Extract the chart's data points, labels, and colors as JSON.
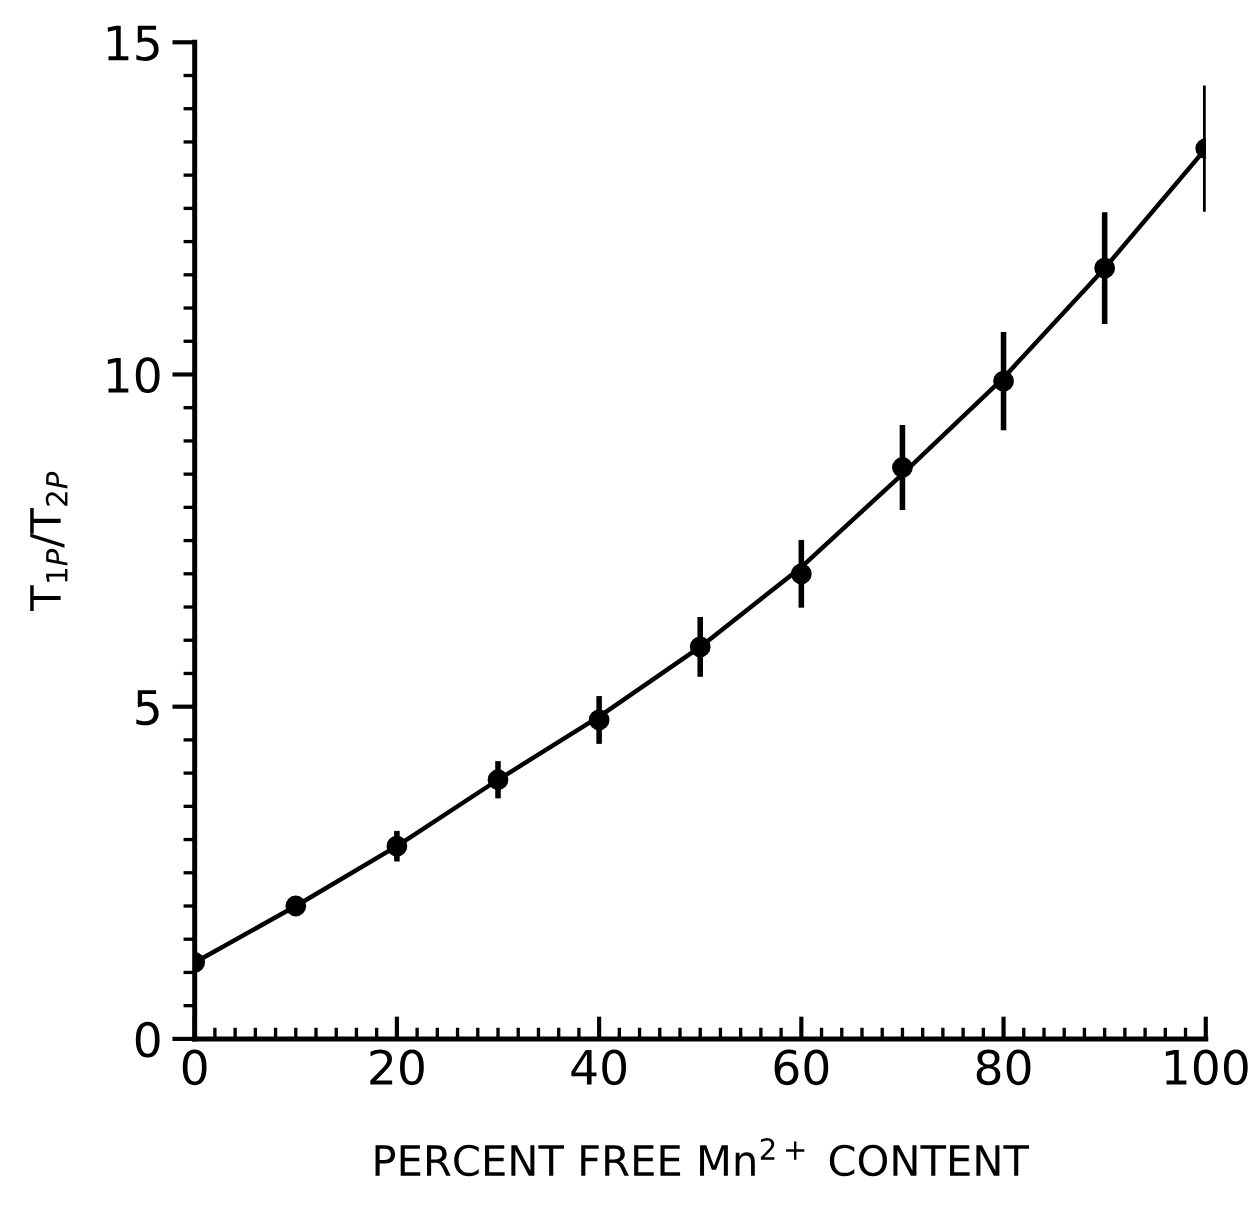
{
  "chart_data": {
    "type": "scatter",
    "xlabel": "PERCENT FREE Mn$^{2+}$ CONTENT",
    "ylabel": "T$_{1P}$/T$_{2P}$",
    "x": [
      0,
      10,
      20,
      30,
      40,
      50,
      60,
      70,
      80,
      90,
      100
    ],
    "series": [
      {
        "color": "#000000",
        "marker": "circle",
        "values": [
          1.15,
          2.0,
          2.9,
          3.9,
          4.8,
          5.9,
          7.0,
          8.6,
          9.9,
          11.6,
          13.4
        ],
        "errors": [
          null,
          null,
          0.23,
          0.28,
          0.36,
          0.45,
          0.51,
          0.64,
          0.74,
          0.84,
          0.95
        ]
      },
      {
        "type": "line",
        "color": "#000000",
        "marker": "none",
        "line_style": "solid",
        "x": [
          0,
          10,
          20,
          30,
          40,
          50,
          60,
          70,
          80,
          90,
          100
        ],
        "values": [
          1.15,
          2.0,
          2.9,
          3.9,
          4.85,
          5.9,
          7.1,
          8.5,
          9.95,
          11.6,
          13.4
        ]
      }
    ],
    "xlim": [
      0,
      100
    ],
    "ylim": [
      0,
      15
    ],
    "xticks": [
      0,
      {
        "value": 2,
        "label": null
      },
      {
        "value": 4,
        "label": null
      },
      {
        "value": 6,
        "label": null
      },
      {
        "value": 8,
        "label": null
      },
      {
        "value": 10,
        "label": null
      },
      {
        "value": 12,
        "label": null
      },
      {
        "value": 14,
        "label": null
      },
      {
        "value": 16,
        "label": null
      },
      {
        "value": 18,
        "label": null
      },
      20,
      {
        "value": 22,
        "label": null
      },
      {
        "value": 24,
        "label": null
      },
      {
        "value": 26,
        "label": null
      },
      {
        "value": 28,
        "label": null
      },
      {
        "value": 30,
        "label": null
      },
      {
        "value": 32,
        "label": null
      },
      {
        "value": 34,
        "label": null
      },
      {
        "value": 36,
        "label": null
      },
      {
        "value": 38,
        "label": null
      },
      40,
      {
        "value": 42,
        "label": null
      },
      {
        "value": 44,
        "label": null
      },
      {
        "value": 46,
        "label": null
      },
      {
        "value": 48,
        "label": null
      },
      {
        "value": 50,
        "label": null
      },
      {
        "value": 52,
        "label": null
      },
      {
        "value": 54,
        "label": null
      },
      {
        "value": 56,
        "label": null
      },
      {
        "value": 58,
        "label": null
      },
      60,
      {
        "value": 62,
        "label": null
      },
      {
        "value": 64,
        "label": null
      },
      {
        "value": 66,
        "label": null
      },
      {
        "value": 68,
        "label": null
      },
      {
        "value": 70,
        "label": null
      },
      {
        "value": 72,
        "label": null
      },
      {
        "value": 74,
        "label": null
      },
      {
        "value": 76,
        "label": null
      },
      {
        "value": 78,
        "label": null
      },
      80,
      {
        "value": 82,
        "label": null
      },
      {
        "value": 84,
        "label": null
      },
      {
        "value": 86,
        "label": null
      },
      {
        "value": 88,
        "label": null
      },
      {
        "value": 90,
        "label": null
      },
      {
        "value": 92,
        "label": null
      },
      {
        "value": 94,
        "label": null
      },
      {
        "value": 96,
        "label": null
      },
      {
        "value": 98,
        "label": null
      },
      100
    ],
    "yticks": [
      0,
      {
        "value": 0.5,
        "label": null
      },
      {
        "value": 1,
        "label": null
      },
      {
        "value": 1.5,
        "label": null
      },
      {
        "value": 2,
        "label": null
      },
      {
        "value": 2.5,
        "label": null
      },
      {
        "value": 3,
        "label": null
      },
      {
        "value": 3.5,
        "label": null
      },
      {
        "value": 4,
        "label": null
      },
      {
        "value": 4.5,
        "label": null
      },
      5,
      {
        "value": 5.5,
        "label": null
      },
      {
        "value": 6,
        "label": null
      },
      {
        "value": 6.5,
        "label": null
      },
      {
        "value": 7,
        "label": null
      },
      {
        "value": 7.5,
        "label": null
      },
      {
        "value": 8,
        "label": null
      },
      {
        "value": 8.5,
        "label": null
      },
      {
        "value": 9,
        "label": null
      },
      {
        "value": 9.5,
        "label": null
      },
      10,
      {
        "value": 10.5,
        "label": null
      },
      {
        "value": 11,
        "label": null
      },
      {
        "value": 11.5,
        "label": null
      },
      {
        "value": 12,
        "label": null
      },
      {
        "value": 12.5,
        "label": null
      },
      {
        "value": 13,
        "label": null
      },
      {
        "value": 13.5,
        "label": null
      },
      {
        "value": 14,
        "label": null
      },
      {
        "value": 14.5,
        "label": null
      },
      15
    ],
    "grid": false,
    "legend": false
  }
}
